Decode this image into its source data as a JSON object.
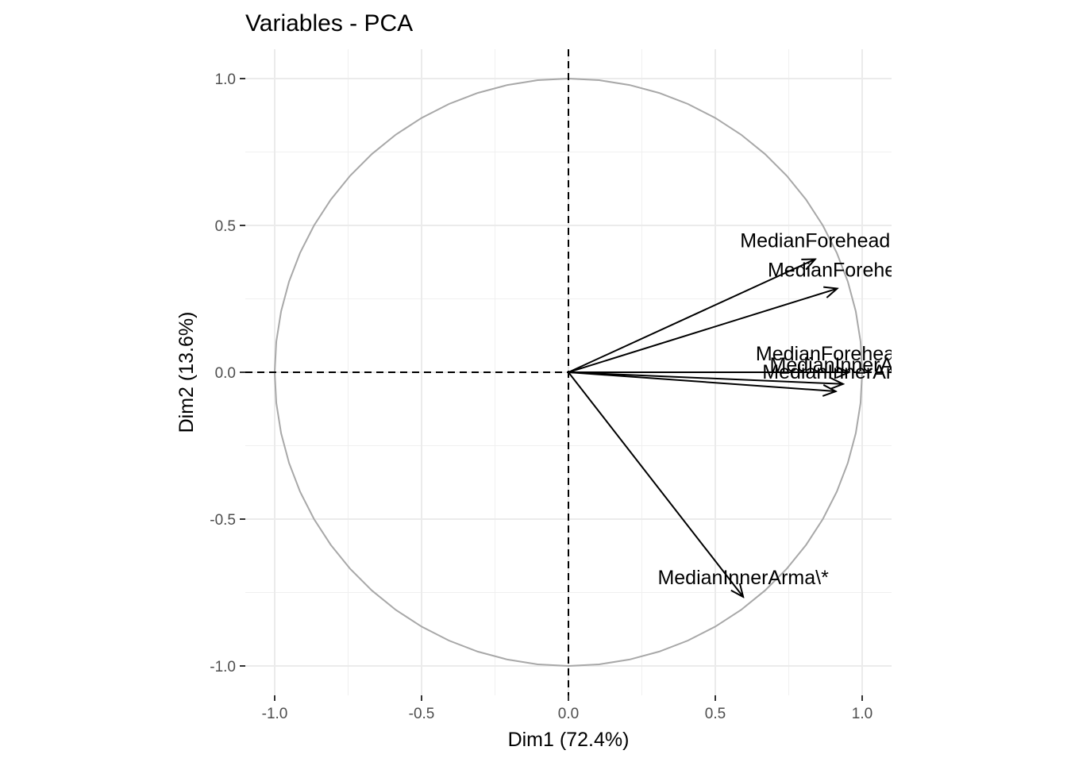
{
  "chart_data": {
    "type": "scatter",
    "title": "Variables - PCA",
    "xlabel": "Dim1 (72.4%)",
    "ylabel": "Dim2 (13.6%)",
    "xlim": [
      -1.1,
      1.1
    ],
    "ylim": [
      -1.1,
      1.1
    ],
    "x_ticks": [
      -1.0,
      -0.5,
      0.0,
      0.5,
      1.0
    ],
    "y_ticks": [
      -1.0,
      -0.5,
      0.0,
      0.5,
      1.0
    ],
    "x_tick_labels": [
      "-1.0",
      "-0.5",
      "0.0",
      "0.5",
      "1.0"
    ],
    "y_tick_labels": [
      "1.0",
      "0.5",
      "0.0",
      "-0.5",
      "-1.0"
    ],
    "grid": true,
    "correlation_circle": true,
    "circle_color": "#a8a8a8",
    "arrow_color": "#000000",
    "vectors": [
      {
        "label": "MedianForehead",
        "x": 0.84,
        "y": 0.385
      },
      {
        "label": "MedianForehea",
        "x": 0.915,
        "y": 0.285
      },
      {
        "label": "MedianForeheadArm",
        "x": 0.955,
        "y": 0.0
      },
      {
        "label": "MedianInnerArm",
        "x": 0.935,
        "y": -0.04
      },
      {
        "label": "MedianInnerArm",
        "x": 0.91,
        "y": -0.065
      },
      {
        "label": "MedianInnerArma\\*",
        "x": 0.595,
        "y": -0.765
      }
    ]
  }
}
